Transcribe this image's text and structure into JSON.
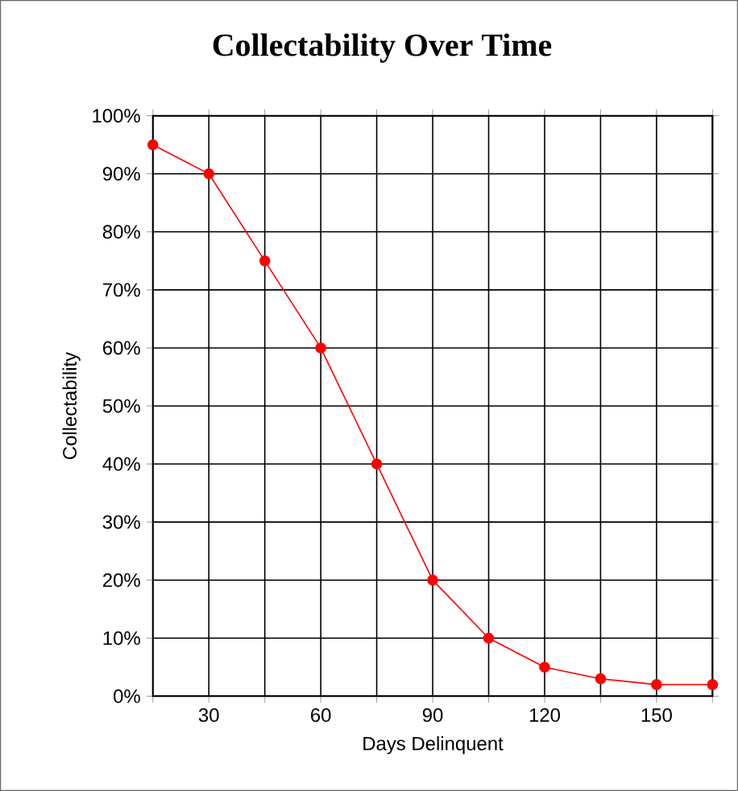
{
  "chart_data": {
    "type": "line",
    "title": "Collectability Over Time",
    "xlabel": "Days Delinquent",
    "ylabel": "Collectability",
    "x": [
      15,
      30,
      45,
      60,
      75,
      90,
      105,
      120,
      135,
      150,
      165
    ],
    "series": [
      {
        "color": "#ff0000",
        "values": [
          95,
          90,
          75,
          60,
          40,
          20,
          10,
          5,
          3,
          2,
          2
        ]
      }
    ],
    "xlim": [
      15,
      165
    ],
    "xticks": [
      {
        "value": 15,
        "label": null
      },
      30,
      {
        "value": 45,
        "label": null
      },
      60,
      {
        "value": 75,
        "label": null
      },
      90,
      {
        "value": 105,
        "label": null
      },
      120,
      {
        "value": 135,
        "label": null
      },
      150,
      {
        "value": 165,
        "label": null
      }
    ],
    "ylim": [
      0,
      100
    ],
    "yticks": [
      {
        "value": 0,
        "label": "0%"
      },
      {
        "value": 10,
        "label": "10%"
      },
      {
        "value": 20,
        "label": "20%"
      },
      {
        "value": 30,
        "label": "30%"
      },
      {
        "value": 40,
        "label": "40%"
      },
      {
        "value": 50,
        "label": "50%"
      },
      {
        "value": 60,
        "label": "60%"
      },
      {
        "value": 70,
        "label": "70%"
      },
      {
        "value": 80,
        "label": "80%"
      },
      {
        "value": 90,
        "label": "90%"
      },
      {
        "value": 100,
        "label": "100%"
      }
    ],
    "grid": true,
    "marker": "circle",
    "line_style": "solid"
  }
}
